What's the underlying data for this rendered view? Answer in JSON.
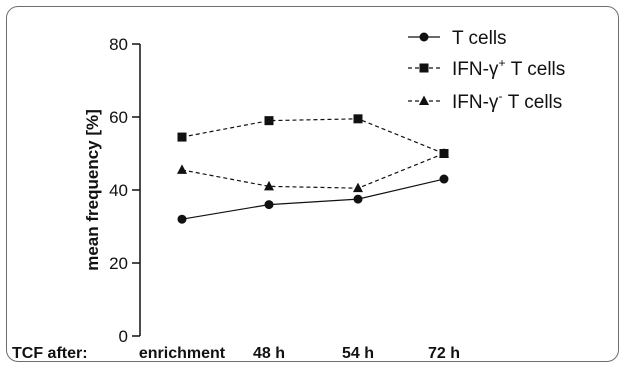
{
  "chart_data": {
    "type": "line",
    "ylabel": "mean frequency [%]",
    "xlabel_prefix": "TCF after:",
    "categories": [
      "enrichment",
      "48 h",
      "54 h",
      "72 h"
    ],
    "ylim": [
      0,
      80
    ],
    "yticks": [
      "0",
      "20",
      "40",
      "60",
      "80"
    ],
    "series": [
      {
        "name": "T cells",
        "name_base": "IFN-",
        "values": [
          32,
          36,
          37.5,
          43
        ],
        "marker": "circle",
        "dash": "solid"
      },
      {
        "name": "IFN-γ+ T cells",
        "name_base": "IFN-γ",
        "name_sup": "+",
        "name_tail": " T cells",
        "values": [
          54.5,
          59,
          59.5,
          50
        ],
        "marker": "square",
        "dash": "dashed"
      },
      {
        "name": "IFN-γ- T cells",
        "name_base": "IFN-γ",
        "name_sup": "-",
        "name_tail": " T cells",
        "values": [
          45.5,
          41,
          40.5,
          50
        ],
        "marker": "triangle",
        "dash": "dashed"
      }
    ],
    "legend_position": "top-right",
    "grid": false
  }
}
